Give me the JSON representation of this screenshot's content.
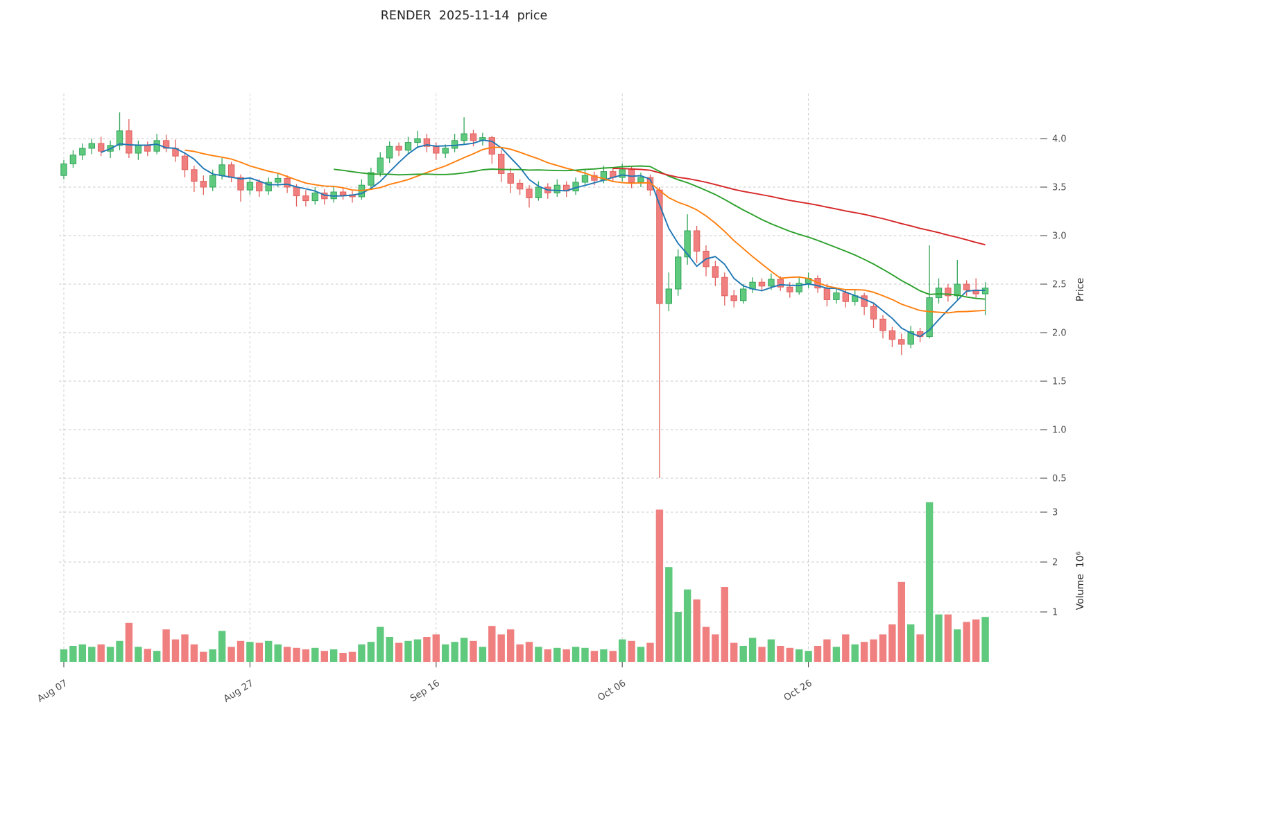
{
  "chart_data": {
    "type": "candlestick",
    "title": "RENDER  2025-11-14  price",
    "panels": [
      "price",
      "volume"
    ],
    "grid": "dashed",
    "x_ticks": {
      "indices": [
        0,
        20,
        40,
        60,
        80
      ],
      "labels": [
        "Aug 07",
        "Aug 27",
        "Sep 16",
        "Oct 06",
        "Oct 26"
      ]
    },
    "price_axis": {
      "label": "Price",
      "side": "right",
      "ticks": [
        0.5,
        1.0,
        1.5,
        2.0,
        2.5,
        3.0,
        3.5,
        4.0
      ]
    },
    "volume_axis": {
      "label": "Volume  10⁶",
      "side": "right",
      "ticks": [
        1,
        2,
        3
      ]
    },
    "moving_averages": [
      {
        "name": "ma-fast",
        "window": 5,
        "color": "#1f77b4"
      },
      {
        "name": "ma-medium",
        "window": 14,
        "color": "#ff7f0e"
      },
      {
        "name": "ma-slow",
        "window": 30,
        "color": "#2ca02c"
      },
      {
        "name": "ma-long",
        "window": 60,
        "color": "#d62728"
      }
    ],
    "colors": {
      "up": "#5fc97e",
      "up_edge": "#33a65b",
      "down": "#f08080",
      "down_edge": "#e0605c",
      "grid": "#c9c9c9",
      "text": "#4d4d4d",
      "title": "#262626"
    },
    "dates": [
      "2025-08-07",
      "2025-08-08",
      "2025-08-09",
      "2025-08-10",
      "2025-08-11",
      "2025-08-12",
      "2025-08-13",
      "2025-08-14",
      "2025-08-15",
      "2025-08-16",
      "2025-08-17",
      "2025-08-18",
      "2025-08-19",
      "2025-08-20",
      "2025-08-21",
      "2025-08-22",
      "2025-08-23",
      "2025-08-24",
      "2025-08-25",
      "2025-08-26",
      "2025-08-27",
      "2025-08-28",
      "2025-08-29",
      "2025-08-30",
      "2025-08-31",
      "2025-09-01",
      "2025-09-02",
      "2025-09-03",
      "2025-09-04",
      "2025-09-05",
      "2025-09-06",
      "2025-09-07",
      "2025-09-08",
      "2025-09-09",
      "2025-09-10",
      "2025-09-11",
      "2025-09-12",
      "2025-09-13",
      "2025-09-14",
      "2025-09-15",
      "2025-09-16",
      "2025-09-17",
      "2025-09-18",
      "2025-09-19",
      "2025-09-20",
      "2025-09-21",
      "2025-09-22",
      "2025-09-23",
      "2025-09-24",
      "2025-09-25",
      "2025-09-26",
      "2025-09-27",
      "2025-09-28",
      "2025-09-29",
      "2025-09-30",
      "2025-10-01",
      "2025-10-02",
      "2025-10-03",
      "2025-10-04",
      "2025-10-05",
      "2025-10-06",
      "2025-10-07",
      "2025-10-08",
      "2025-10-09",
      "2025-10-10",
      "2025-10-11",
      "2025-10-12",
      "2025-10-13",
      "2025-10-14",
      "2025-10-15",
      "2025-10-16",
      "2025-10-17",
      "2025-10-18",
      "2025-10-19",
      "2025-10-20",
      "2025-10-21",
      "2025-10-22",
      "2025-10-23",
      "2025-10-24",
      "2025-10-25",
      "2025-10-26",
      "2025-10-27",
      "2025-10-28",
      "2025-10-29",
      "2025-10-30",
      "2025-10-31",
      "2025-11-01",
      "2025-11-02",
      "2025-11-03",
      "2025-11-04",
      "2025-11-05",
      "2025-11-06",
      "2025-11-07",
      "2025-11-08",
      "2025-11-09",
      "2025-11-10",
      "2025-11-11",
      "2025-11-12",
      "2025-11-13",
      "2025-11-14"
    ],
    "open": [
      3.62,
      3.74,
      3.83,
      3.9,
      3.95,
      3.87,
      3.93,
      4.08,
      3.85,
      3.93,
      3.87,
      3.98,
      3.9,
      3.82,
      3.68,
      3.56,
      3.5,
      3.62,
      3.73,
      3.6,
      3.47,
      3.55,
      3.46,
      3.55,
      3.59,
      3.5,
      3.41,
      3.36,
      3.44,
      3.38,
      3.45,
      3.42,
      3.4,
      3.52,
      3.65,
      3.8,
      3.92,
      3.88,
      3.96,
      4.0,
      3.92,
      3.85,
      3.9,
      3.98,
      4.05,
      3.98,
      4.01,
      3.84,
      3.64,
      3.54,
      3.48,
      3.39,
      3.5,
      3.44,
      3.52,
      3.46,
      3.55,
      3.62,
      3.57,
      3.66,
      3.6,
      3.68,
      3.55,
      3.6,
      3.47,
      2.3,
      2.45,
      2.78,
      3.05,
      2.84,
      2.68,
      2.57,
      2.38,
      2.33,
      2.45,
      2.52,
      2.48,
      2.55,
      2.47,
      2.42,
      2.51,
      2.56,
      2.46,
      2.34,
      2.41,
      2.32,
      2.38,
      2.27,
      2.14,
      2.02,
      1.93,
      1.88,
      2.01,
      1.96,
      2.36,
      2.46,
      2.38,
      2.5,
      2.44,
      2.4
    ],
    "high": [
      3.78,
      3.88,
      3.95,
      4.0,
      4.02,
      3.98,
      4.27,
      4.2,
      3.98,
      3.97,
      4.05,
      4.04,
      3.99,
      3.86,
      3.72,
      3.62,
      3.68,
      3.8,
      3.76,
      3.63,
      3.6,
      3.58,
      3.6,
      3.64,
      3.62,
      3.53,
      3.47,
      3.5,
      3.48,
      3.5,
      3.49,
      3.46,
      3.58,
      3.7,
      3.86,
      3.97,
      3.96,
      4.02,
      4.08,
      4.05,
      3.96,
      3.94,
      4.05,
      4.22,
      4.09,
      4.06,
      4.03,
      3.88,
      3.7,
      3.58,
      3.52,
      3.56,
      3.54,
      3.58,
      3.56,
      3.6,
      3.68,
      3.66,
      3.72,
      3.7,
      3.74,
      3.71,
      3.65,
      3.63,
      3.5,
      2.62,
      2.86,
      3.22,
      3.1,
      2.9,
      2.74,
      2.62,
      2.44,
      2.5,
      2.57,
      2.56,
      2.61,
      2.58,
      2.52,
      2.58,
      2.62,
      2.59,
      2.5,
      2.46,
      2.44,
      2.44,
      2.41,
      2.31,
      2.18,
      2.06,
      1.99,
      2.07,
      2.05,
      2.9,
      2.56,
      2.5,
      2.75,
      2.54,
      2.56,
      2.52
    ],
    "low": [
      3.58,
      3.7,
      3.78,
      3.84,
      3.82,
      3.8,
      3.88,
      3.8,
      3.78,
      3.82,
      3.84,
      3.86,
      3.76,
      3.6,
      3.45,
      3.42,
      3.46,
      3.58,
      3.55,
      3.35,
      3.42,
      3.4,
      3.42,
      3.5,
      3.44,
      3.3,
      3.3,
      3.32,
      3.32,
      3.34,
      3.37,
      3.34,
      3.37,
      3.48,
      3.61,
      3.75,
      3.82,
      3.84,
      3.9,
      3.86,
      3.78,
      3.8,
      3.86,
      3.94,
      3.92,
      3.93,
      3.74,
      3.55,
      3.44,
      3.42,
      3.29,
      3.36,
      3.38,
      3.4,
      3.4,
      3.42,
      3.51,
      3.52,
      3.54,
      3.55,
      3.56,
      3.49,
      3.5,
      3.41,
      0.5,
      2.22,
      2.38,
      2.7,
      2.72,
      2.58,
      2.48,
      2.28,
      2.26,
      2.3,
      2.41,
      2.43,
      2.44,
      2.43,
      2.36,
      2.39,
      2.46,
      2.41,
      2.27,
      2.3,
      2.26,
      2.28,
      2.18,
      2.05,
      1.94,
      1.85,
      1.77,
      1.84,
      1.9,
      1.94,
      2.3,
      2.32,
      2.34,
      2.38,
      2.36,
      2.18
    ],
    "close": [
      3.74,
      3.83,
      3.9,
      3.95,
      3.87,
      3.93,
      4.08,
      3.85,
      3.93,
      3.87,
      3.98,
      3.9,
      3.82,
      3.68,
      3.56,
      3.5,
      3.62,
      3.73,
      3.6,
      3.47,
      3.55,
      3.46,
      3.55,
      3.59,
      3.5,
      3.41,
      3.36,
      3.44,
      3.38,
      3.45,
      3.42,
      3.4,
      3.52,
      3.65,
      3.8,
      3.92,
      3.88,
      3.96,
      4.0,
      3.92,
      3.85,
      3.9,
      3.98,
      4.05,
      3.98,
      4.01,
      3.84,
      3.64,
      3.54,
      3.48,
      3.39,
      3.5,
      3.44,
      3.52,
      3.46,
      3.55,
      3.62,
      3.57,
      3.66,
      3.6,
      3.68,
      3.55,
      3.6,
      3.47,
      2.3,
      2.45,
      2.78,
      3.05,
      2.84,
      2.68,
      2.57,
      2.38,
      2.33,
      2.45,
      2.52,
      2.48,
      2.55,
      2.47,
      2.42,
      2.51,
      2.56,
      2.46,
      2.34,
      2.41,
      2.32,
      2.38,
      2.27,
      2.14,
      2.02,
      1.93,
      1.88,
      2.01,
      1.96,
      2.36,
      2.46,
      2.38,
      2.5,
      2.44,
      2.4,
      2.46
    ],
    "volume": [
      0.25,
      0.32,
      0.35,
      0.3,
      0.35,
      0.3,
      0.42,
      0.78,
      0.3,
      0.26,
      0.22,
      0.65,
      0.45,
      0.55,
      0.35,
      0.2,
      0.25,
      0.62,
      0.3,
      0.42,
      0.4,
      0.38,
      0.42,
      0.35,
      0.3,
      0.28,
      0.25,
      0.28,
      0.22,
      0.25,
      0.18,
      0.2,
      0.35,
      0.4,
      0.7,
      0.5,
      0.38,
      0.42,
      0.45,
      0.5,
      0.55,
      0.35,
      0.4,
      0.48,
      0.42,
      0.3,
      0.72,
      0.55,
      0.65,
      0.35,
      0.4,
      0.3,
      0.25,
      0.28,
      0.25,
      0.3,
      0.28,
      0.22,
      0.25,
      0.22,
      0.45,
      0.42,
      0.3,
      0.38,
      3.05,
      1.9,
      1.0,
      1.45,
      1.25,
      0.7,
      0.55,
      1.5,
      0.38,
      0.32,
      0.48,
      0.3,
      0.45,
      0.32,
      0.28,
      0.25,
      0.22,
      0.32,
      0.45,
      0.3,
      0.55,
      0.35,
      0.4,
      0.45,
      0.55,
      0.75,
      1.6,
      0.75,
      0.55,
      3.2,
      0.95,
      0.95,
      0.65,
      0.8,
      0.85,
      0.9
    ]
  }
}
